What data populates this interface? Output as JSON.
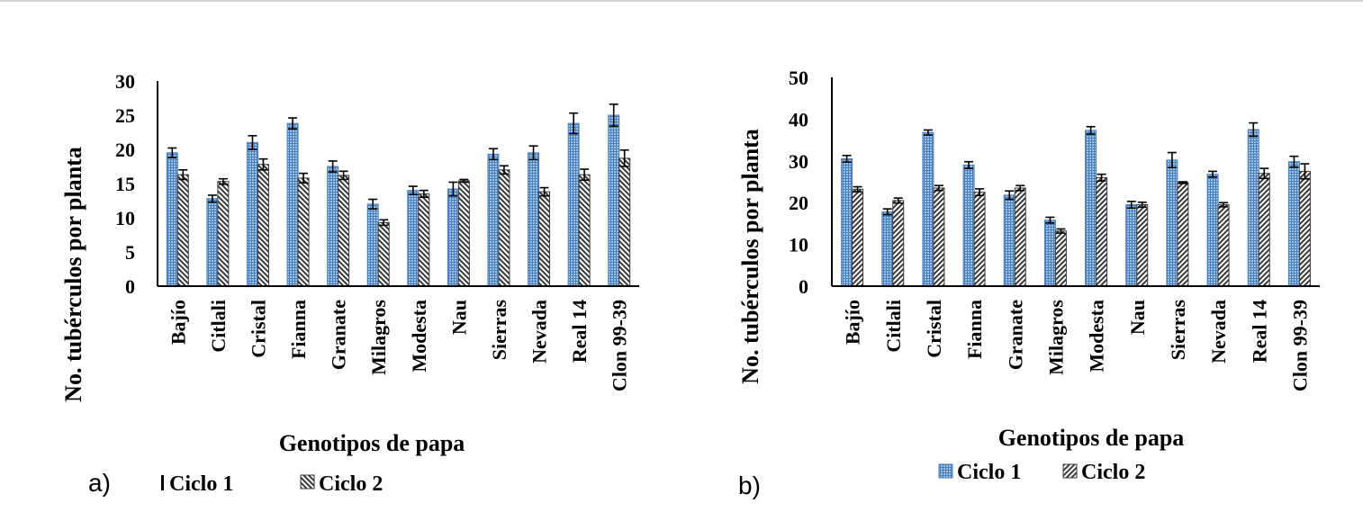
{
  "chart_data": [
    {
      "type": "bar",
      "panel_label": "a)",
      "categories": [
        "Bajío",
        "Citlali",
        "Cristal",
        "Fianna",
        "Granate",
        "Milagros",
        "Modesta",
        "Nau",
        "Sierras",
        "Nevada",
        "Real 14",
        "Clon 99-39"
      ],
      "series": [
        {
          "name": "Ciclo 1",
          "values": [
            19.5,
            12.8,
            21.0,
            23.8,
            17.5,
            12.0,
            14.0,
            14.2,
            19.3,
            19.5,
            23.8,
            25.0
          ],
          "errors": [
            0.7,
            0.5,
            1.0,
            0.8,
            0.8,
            0.7,
            0.6,
            1.0,
            0.8,
            1.0,
            1.5,
            1.6
          ]
        },
        {
          "name": "Ciclo 2",
          "values": [
            16.3,
            15.3,
            17.8,
            15.8,
            16.2,
            9.3,
            13.5,
            15.4,
            17.0,
            13.8,
            16.3,
            18.7
          ],
          "errors": [
            0.7,
            0.4,
            0.8,
            0.7,
            0.6,
            0.4,
            0.5,
            0.2,
            0.6,
            0.6,
            0.8,
            1.2
          ]
        }
      ],
      "xlabel": "Genotipos de papa",
      "ylabel": "No. tubérculos por planta",
      "ylim": [
        0,
        30
      ],
      "yticks": [
        "0",
        "5",
        "10",
        "15",
        "20",
        "25",
        "30"
      ],
      "legend_position": "bottom",
      "grid": false
    },
    {
      "type": "bar",
      "panel_label": "b)",
      "categories": [
        "Bajío",
        "Citlali",
        "Cristal",
        "Fianna",
        "Granate",
        "Milagros",
        "Modesta",
        "Nau",
        "Sierras",
        "Nevada",
        "Real 14",
        "Clon 99-39"
      ],
      "series": [
        {
          "name": "Ciclo 1",
          "values": [
            30.5,
            17.8,
            36.8,
            29.0,
            21.8,
            15.8,
            37.3,
            19.5,
            30.2,
            26.8,
            37.5,
            29.8
          ],
          "errors": [
            0.8,
            0.7,
            0.6,
            0.8,
            1.0,
            0.7,
            0.9,
            0.8,
            1.8,
            0.7,
            1.6,
            1.3
          ]
        },
        {
          "name": "Ciclo 2",
          "values": [
            23.2,
            20.5,
            23.5,
            22.5,
            23.5,
            13.2,
            26.0,
            19.5,
            24.8,
            19.5,
            27.0,
            27.5
          ],
          "errors": [
            0.6,
            0.6,
            0.6,
            0.8,
            0.6,
            0.5,
            0.8,
            0.6,
            0.2,
            0.5,
            1.2,
            1.8
          ]
        }
      ],
      "xlabel": "Genotipos de papa",
      "ylabel": "No. tubérculos por planta",
      "ylim": [
        0,
        50
      ],
      "yticks": [
        "0",
        "10",
        "20",
        "30",
        "40",
        "50"
      ],
      "legend_position": "bottom",
      "grid": false
    }
  ],
  "colors": {
    "ciclo1_fill": "#9dc3e6",
    "ciclo1_stripe": "#4a7ebb",
    "ciclo2_fill": "#ffffff",
    "ciclo2_stripe": "#3a3a3a",
    "axis": "#000000"
  }
}
